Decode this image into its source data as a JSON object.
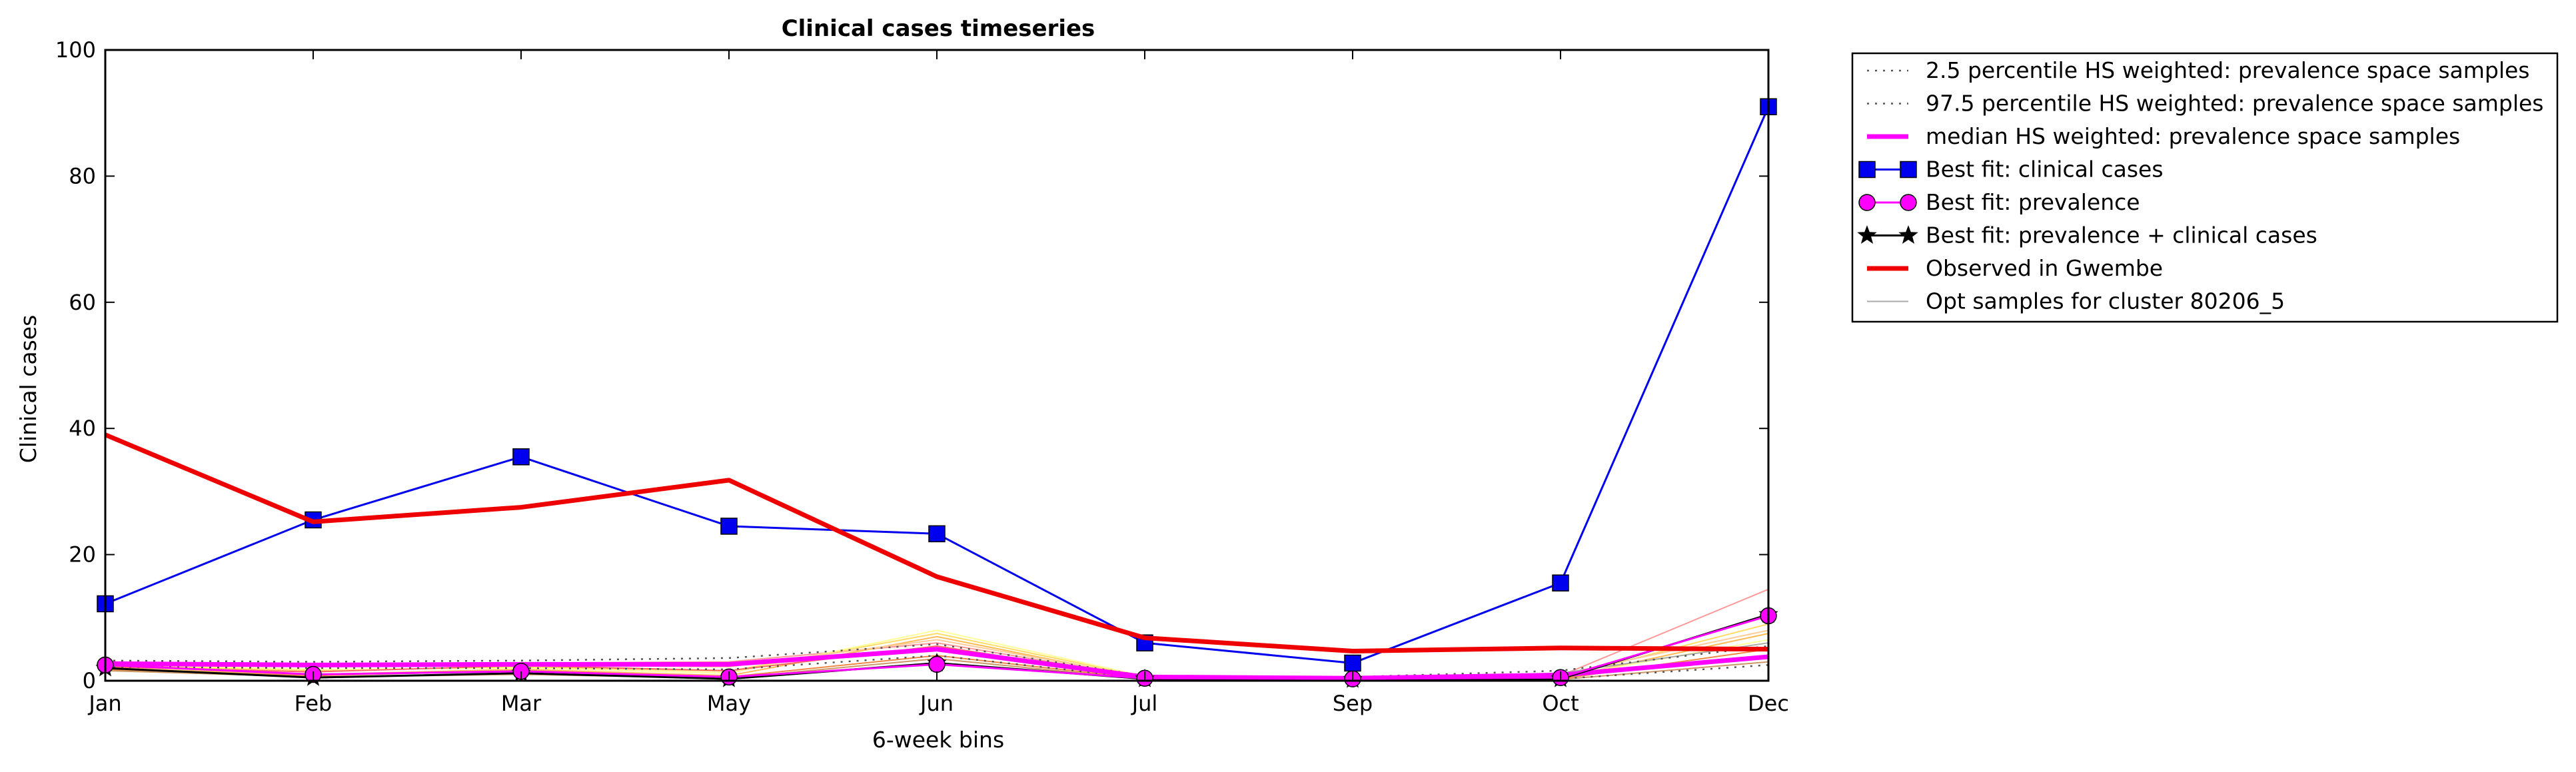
{
  "chart_data": {
    "type": "line",
    "title": "Clinical cases timeseries",
    "xlabel": "6-week bins",
    "ylabel": "Clinical cases",
    "ylim": [
      0,
      100
    ],
    "yticks": [
      0,
      20,
      40,
      60,
      80,
      100
    ],
    "categories": [
      "Jan",
      "Feb",
      "Mar",
      "May",
      "Jun",
      "Jul",
      "Sep",
      "Oct",
      "Dec"
    ],
    "grid": false,
    "legend_position": "outside-top-right",
    "series": [
      {
        "name": "2.5 percentile HS weighted: prevalence space samples",
        "style": "dotted",
        "color": "#555555",
        "values": [
          2.2,
          2.0,
          2.0,
          1.8,
          4.0,
          0.4,
          0.2,
          0.3,
          2.5
        ]
      },
      {
        "name": "97.5 percentile HS weighted: prevalence space samples",
        "style": "dotted",
        "color": "#555555",
        "values": [
          3.2,
          3.0,
          3.2,
          3.6,
          5.8,
          0.8,
          0.6,
          1.6,
          5.5
        ]
      },
      {
        "name": "median HS weighted: prevalence space samples",
        "style": "solid-thick",
        "color": "#ff00ff",
        "values": [
          2.7,
          2.5,
          2.6,
          2.6,
          5.0,
          0.6,
          0.4,
          0.9,
          3.8
        ]
      },
      {
        "name": "Best fit: clinical cases",
        "style": "line-square",
        "color": "#0000ee",
        "values": [
          12.2,
          25.5,
          35.5,
          24.5,
          23.3,
          6.0,
          2.8,
          15.5,
          91.0
        ]
      },
      {
        "name": "Best fit: prevalence",
        "style": "line-circle",
        "color": "#ff00ff",
        "values": [
          2.5,
          1.0,
          1.5,
          0.6,
          2.6,
          0.4,
          0.3,
          0.5,
          10.3
        ]
      },
      {
        "name": "Best fit: prevalence + clinical cases",
        "style": "line-star",
        "color": "#000000",
        "values": [
          2.0,
          0.5,
          1.2,
          0.3,
          2.8,
          0.3,
          0.2,
          0.3,
          10.5
        ]
      },
      {
        "name": "Observed in Gwembe",
        "style": "solid-thick",
        "color": "#ee0000",
        "values": [
          39.0,
          25.2,
          27.5,
          31.8,
          16.5,
          6.8,
          4.7,
          5.2,
          5.0
        ]
      },
      {
        "name": "Opt samples for cluster 80206_5",
        "style": "thin",
        "color": "#aaaaaa",
        "values": [
          2.8,
          2.5,
          2.6,
          2.8,
          5.0,
          0.5,
          0.5,
          1.2,
          6.0
        ]
      }
    ],
    "sample_lines": [
      {
        "color": "#ff9999",
        "values": [
          3.0,
          2.6,
          2.8,
          3.0,
          6.0,
          0.5,
          0.4,
          0.8,
          14.5
        ]
      },
      {
        "color": "#ffdd66",
        "values": [
          2.4,
          1.6,
          2.2,
          1.5,
          7.5,
          0.6,
          0.3,
          0.5,
          9.0
        ]
      },
      {
        "color": "#ffbb55",
        "values": [
          2.0,
          1.0,
          1.8,
          0.8,
          7.0,
          0.4,
          0.3,
          0.4,
          7.5
        ]
      },
      {
        "color": "#ffff99",
        "values": [
          2.6,
          1.8,
          2.0,
          1.2,
          8.0,
          0.7,
          0.4,
          0.6,
          6.5
        ]
      },
      {
        "color": "#ee8844",
        "values": [
          1.8,
          0.8,
          1.6,
          0.6,
          4.0,
          0.3,
          0.2,
          0.3,
          5.0
        ]
      },
      {
        "color": "#ff6666",
        "values": [
          2.2,
          1.4,
          2.4,
          1.6,
          5.5,
          0.4,
          0.3,
          0.6,
          4.0
        ]
      },
      {
        "color": "#ffcc99",
        "values": [
          2.9,
          2.2,
          2.5,
          2.2,
          6.5,
          0.6,
          0.5,
          1.0,
          8.0
        ]
      },
      {
        "color": "#cc9966",
        "values": [
          1.6,
          0.6,
          1.0,
          0.4,
          3.5,
          0.2,
          0.2,
          0.2,
          3.0
        ]
      }
    ]
  }
}
